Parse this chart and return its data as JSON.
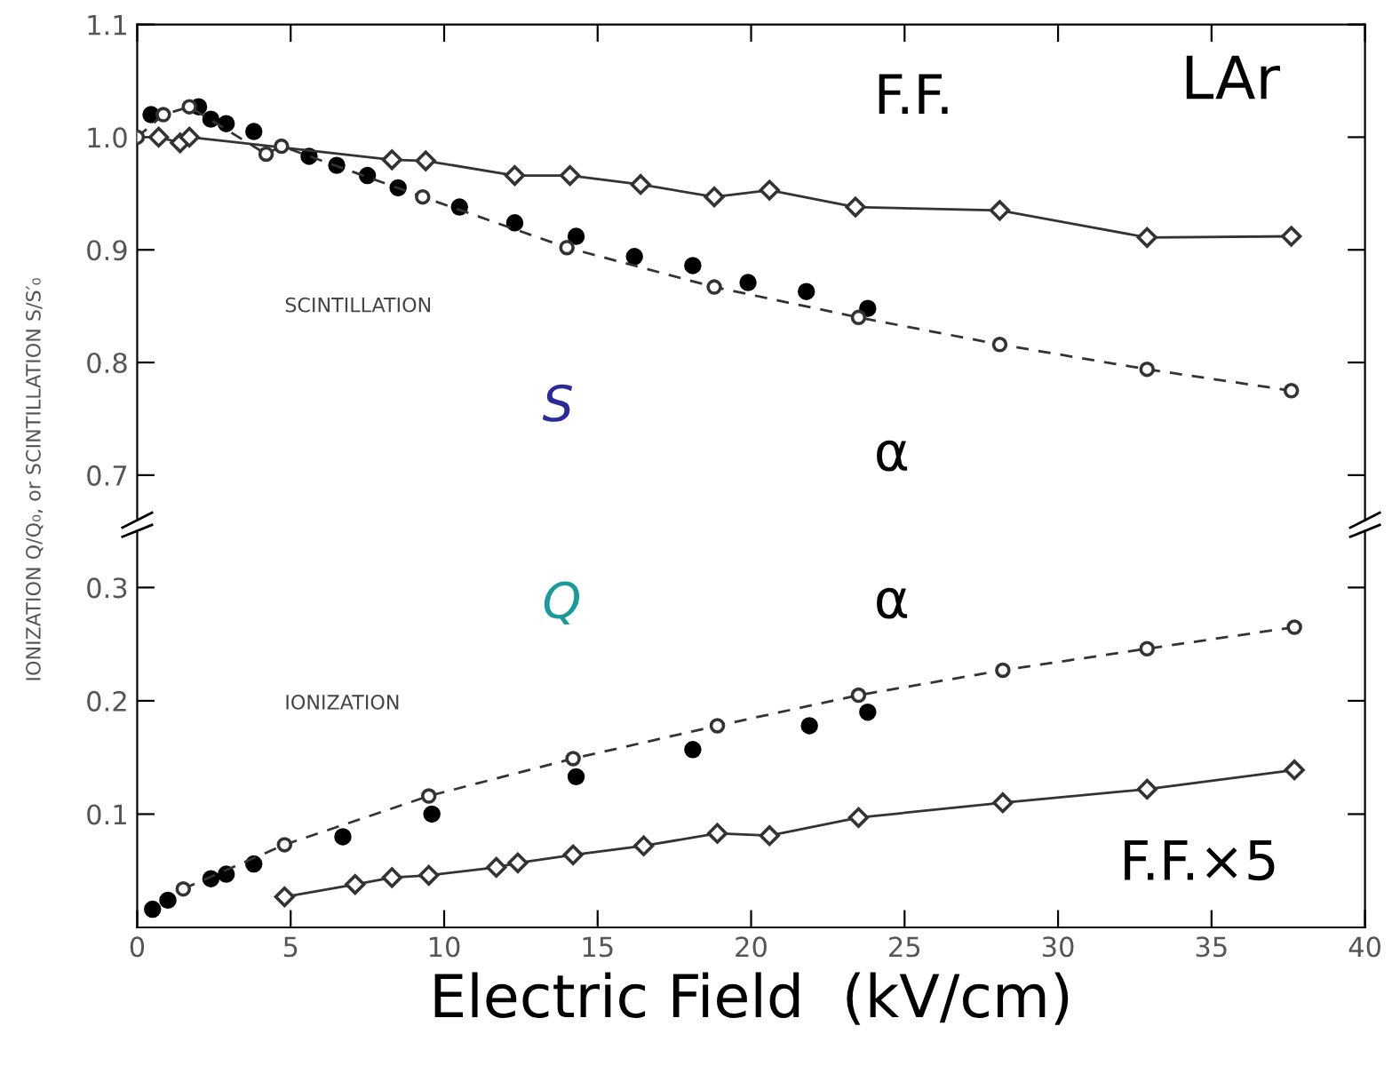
{
  "chart_data": [
    {
      "type": "line",
      "ylabel": "IONIZATION Q/Q₀, or SCINTILLATION S/S′₀",
      "xlim": [
        0,
        40
      ],
      "xticks": [
        0,
        5,
        10,
        15,
        20,
        25,
        30,
        35,
        40
      ],
      "ylim": [
        0.66,
        1.1
      ],
      "yticks": [
        0.7,
        0.8,
        0.9,
        {
          "value": 1.0,
          "label": "1.0"
        },
        1.1
      ],
      "tick_labels": "y",
      "grid": false,
      "legend": false,
      "annotations": [
        "SCINTILLATION",
        "S",
        "LAr"
      ],
      "series": [
        {
          "name": "F.F.",
          "color": "#333333",
          "marker": "diamond",
          "line_style": "solid",
          "x": [
            0.7,
            1.4,
            1.7,
            8.3,
            9.4,
            12.3,
            14.1,
            16.4,
            18.8,
            20.6,
            23.4,
            28.1,
            32.9,
            37.6
          ],
          "values": [
            1.0,
            0.995,
            1.0,
            0.98,
            0.979,
            0.966,
            0.966,
            0.958,
            0.947,
            0.953,
            0.938,
            0.935,
            0.911,
            0.912
          ]
        },
        {
          "name": "α",
          "color": "#333333",
          "marker": "circle",
          "line_style": "dashed",
          "x": [
            0,
            0.85,
            1.7,
            4.2,
            4.7,
            9.3,
            14.0,
            18.8,
            23.5,
            28.1,
            32.9,
            37.6
          ],
          "values": [
            1.0,
            1.02,
            1.027,
            0.985,
            0.992,
            0.947,
            0.902,
            0.867,
            0.84,
            0.816,
            0.794,
            0.775
          ]
        },
        {
          "type": "scatter",
          "color": "#000000",
          "marker": "circle",
          "x": [
            0.45,
            2.0,
            2.4,
            2.9,
            3.8,
            5.6,
            6.5,
            7.5,
            8.5,
            10.5,
            12.3,
            14.3,
            16.2,
            18.1,
            19.9,
            21.8,
            23.8
          ],
          "values": [
            1.02,
            1.027,
            1.016,
            1.012,
            1.005,
            0.983,
            0.975,
            0.966,
            0.955,
            0.938,
            0.924,
            0.912,
            0.894,
            0.886,
            0.871,
            0.863,
            0.848
          ]
        }
      ]
    },
    {
      "type": "line",
      "xlabel": "Electric Field  (kV/cm)",
      "xlim": [
        0,
        40
      ],
      "xticks": [
        0,
        5,
        10,
        15,
        20,
        25,
        30,
        35,
        40
      ],
      "ylim": [
        0,
        0.35
      ],
      "yticks": [
        0.1,
        0.2,
        0.3
      ],
      "grid": false,
      "legend": false,
      "annotations": [
        "IONIZATION",
        "Q"
      ],
      "series": [
        {
          "name": "α",
          "color": "#333333",
          "marker": "circle",
          "line_style": "dashed",
          "x": [
            1.5,
            4.8,
            9.5,
            14.2,
            18.9,
            23.5,
            28.2,
            32.9,
            37.7
          ],
          "values": [
            0.034,
            0.073,
            0.116,
            0.149,
            0.178,
            0.205,
            0.227,
            0.246,
            0.265
          ]
        },
        {
          "type": "scatter",
          "color": "#000000",
          "marker": "circle",
          "x": [
            0.5,
            1.0,
            2.4,
            2.9,
            3.8,
            6.7,
            9.6,
            14.3,
            18.1,
            21.9,
            23.8
          ],
          "values": [
            0.016,
            0.024,
            0.043,
            0.047,
            0.056,
            0.08,
            0.1,
            0.133,
            0.157,
            0.178,
            0.19
          ]
        },
        {
          "name": "F.F.×5",
          "color": "#333333",
          "marker": "diamond",
          "line_style": "solid",
          "x": [
            4.8,
            7.1,
            8.3,
            9.5,
            11.7,
            12.4,
            14.2,
            16.5,
            18.9,
            20.6,
            23.5,
            28.2,
            32.9,
            37.7
          ],
          "values": [
            0.027,
            0.038,
            0.044,
            0.046,
            0.053,
            0.057,
            0.064,
            0.072,
            0.083,
            0.081,
            0.097,
            0.11,
            0.122,
            0.139
          ]
        }
      ]
    }
  ]
}
